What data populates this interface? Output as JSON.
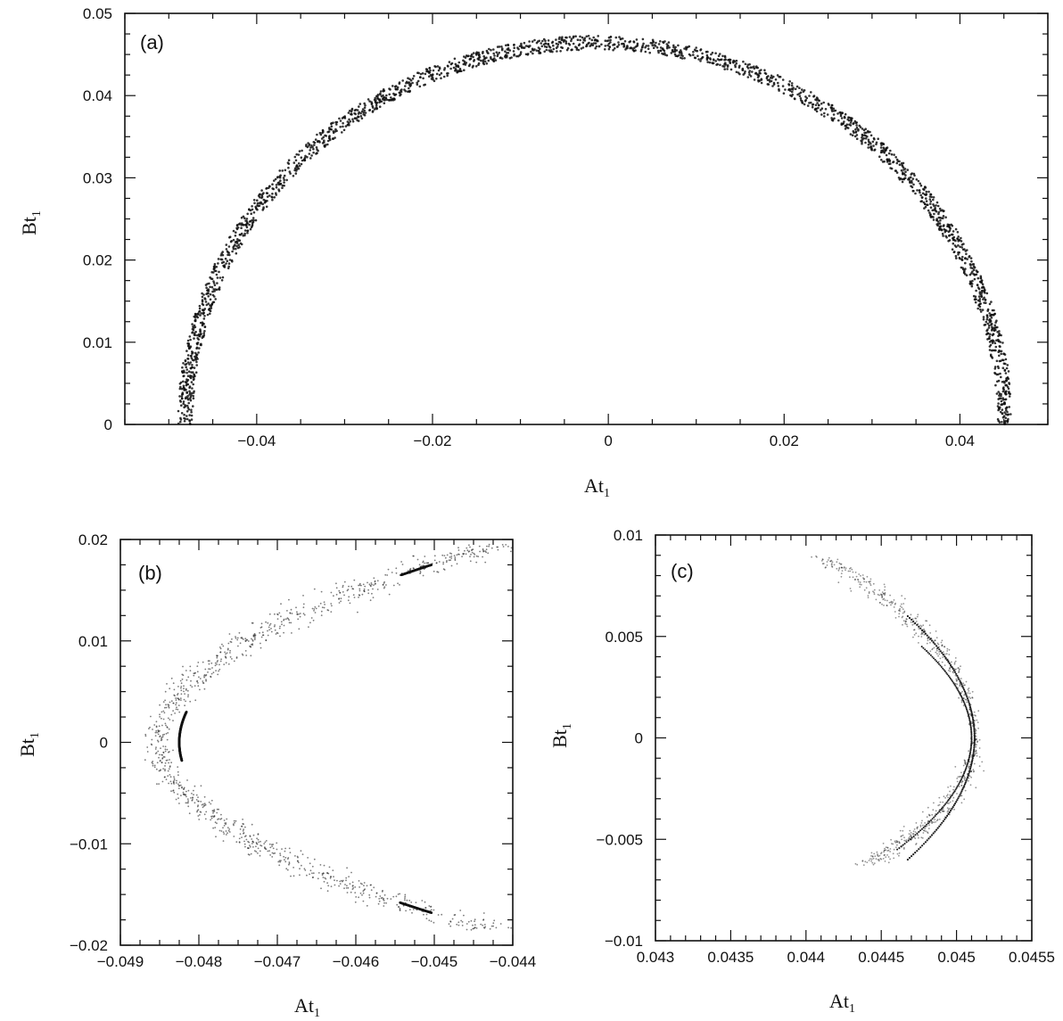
{
  "chart_data": [
    {
      "type": "scatter",
      "panel_label": "(a)",
      "xlabel": "At",
      "xlabel_sub": "1",
      "ylabel": "Bt",
      "ylabel_sub": "1",
      "xlim": [
        -0.055,
        0.05
      ],
      "ylim": [
        0,
        0.05
      ],
      "xticks": [
        -0.04,
        -0.02,
        0,
        0.02,
        0.04
      ],
      "xtick_labels": [
        "−0.04",
        "−0.02",
        "0",
        "0.02",
        "0.04"
      ],
      "yticks": [
        0,
        0.01,
        0.02,
        0.03,
        0.04,
        0.05
      ],
      "ytick_labels": [
        "0",
        "0.01",
        "0.02",
        "0.03",
        "0.04",
        "0.05"
      ],
      "xminor": 0.005,
      "yminor": 0.0025,
      "description_curve": "upper half ring",
      "ring": {
        "center_x": -0.0015,
        "radius_inner": 0.0458,
        "radius_outer": 0.0475,
        "x_left_end": -0.0478,
        "x_right_end": 0.0455
      },
      "grid": false
    },
    {
      "type": "scatter",
      "panel_label": "(b)",
      "xlabel": "At",
      "xlabel_sub": "1",
      "ylabel": "Bt",
      "ylabel_sub": "1",
      "xlim": [
        -0.049,
        -0.044
      ],
      "ylim": [
        -0.02,
        0.02
      ],
      "xticks": [
        -0.049,
        -0.048,
        -0.047,
        -0.046,
        -0.045,
        -0.044
      ],
      "xtick_labels": [
        "−0.049",
        "−0.048",
        "−0.047",
        "−0.046",
        "−0.045",
        "−0.044"
      ],
      "yticks": [
        -0.02,
        -0.01,
        0,
        0.01,
        0.02
      ],
      "ytick_labels": [
        "−0.02",
        "−0.01",
        "0",
        "0.01",
        "0.02"
      ],
      "xminor": 0.00025,
      "yminor": 0.0025,
      "vertex": [
        -0.0485,
        0
      ],
      "upper_end": [
        -0.0442,
        0.0195
      ],
      "lower_end": [
        -0.0443,
        -0.0185
      ],
      "grid": false
    },
    {
      "type": "scatter",
      "panel_label": "(c)",
      "xlabel": "At",
      "xlabel_sub": "1",
      "ylabel": "Bt",
      "ylabel_sub": "1",
      "xlim": [
        0.043,
        0.0455
      ],
      "ylim": [
        -0.01,
        0.01
      ],
      "xticks": [
        0.043,
        0.0435,
        0.044,
        0.0445,
        0.045,
        0.0455
      ],
      "xtick_labels": [
        "0.043",
        "0.0435",
        "0.044",
        "0.0445",
        "0.045",
        "0.0455"
      ],
      "yticks": [
        -0.01,
        -0.005,
        0,
        0.005,
        0.01
      ],
      "ytick_labels": [
        "−0.01",
        "−0.005",
        "0",
        "0.005",
        "0.01"
      ],
      "xminor": 0.0001,
      "yminor": 0.001,
      "vertex": [
        0.04512,
        0
      ],
      "upper_end": [
        0.0441,
        0.009
      ],
      "lower_end": [
        0.0444,
        -0.0063
      ],
      "grid": false
    }
  ]
}
